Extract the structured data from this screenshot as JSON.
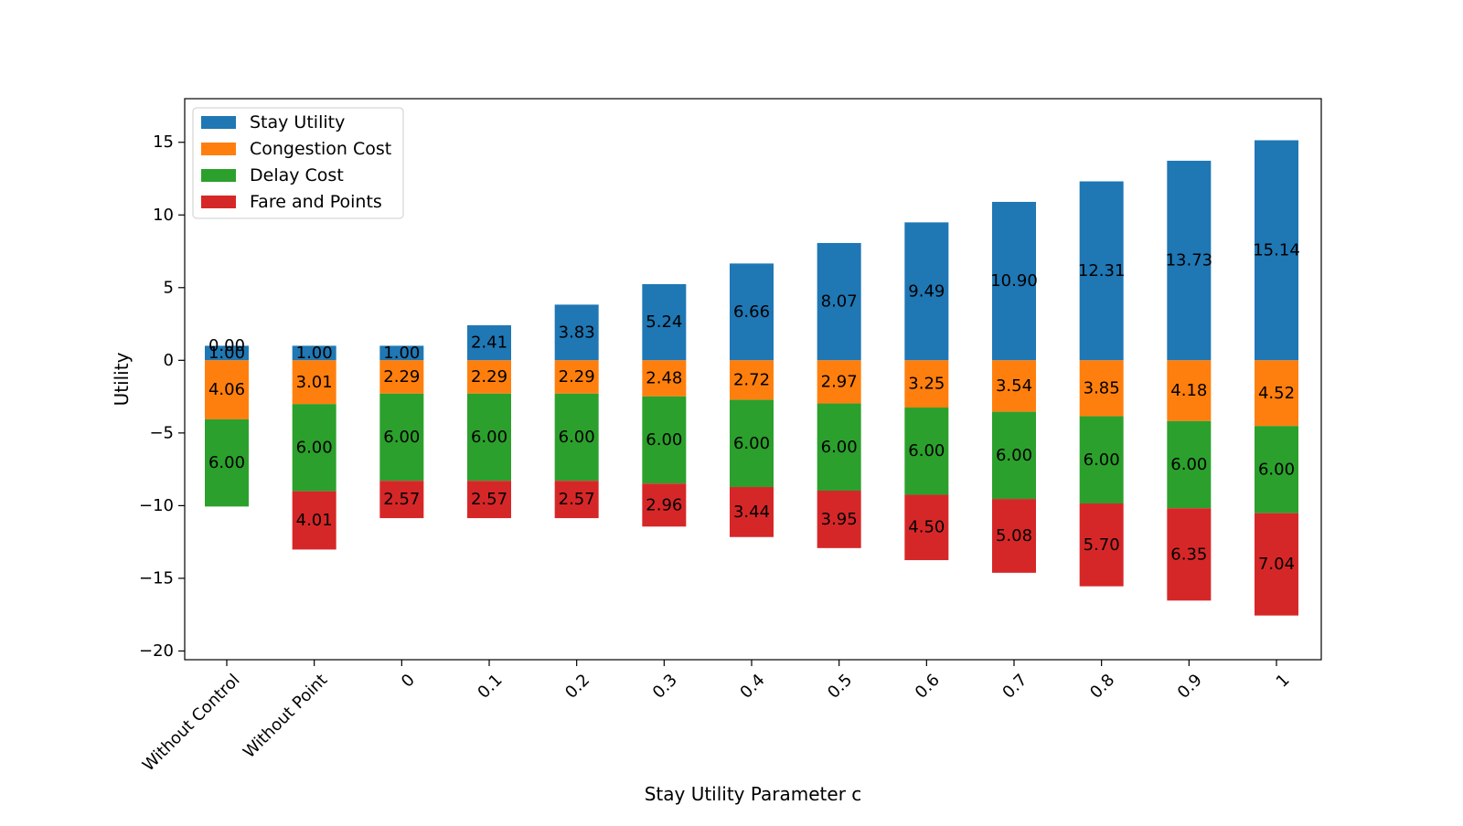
{
  "chart_data": {
    "type": "bar",
    "stacked": true,
    "title": "",
    "xlabel": "Stay Utility Parameter c",
    "ylabel": "Utility",
    "ylim": [
      -20.6,
      18.0
    ],
    "yticks": [
      15,
      10,
      5,
      0,
      -5,
      -10,
      -15,
      -20
    ],
    "ytick_labels": [
      "15",
      "10",
      "5",
      "0",
      "−5",
      "−10",
      "−15",
      "−20"
    ],
    "grid": false,
    "legend_position": "top-left",
    "categories": [
      "Without Control",
      "Without Point",
      "0",
      "0.1",
      "0.2",
      "0.3",
      "0.4",
      "0.5",
      "0.6",
      "0.7",
      "0.8",
      "0.9",
      "1"
    ],
    "series": [
      {
        "name": "Stay Utility",
        "color": "#1f77b4",
        "values": [
          1.0,
          1.0,
          1.0,
          2.41,
          3.83,
          5.24,
          6.66,
          8.07,
          9.49,
          10.9,
          12.31,
          13.73,
          15.14
        ],
        "labels": [
          "1.00",
          "1.00",
          "1.00",
          "2.41",
          "3.83",
          "5.24",
          "6.66",
          "8.07",
          "9.49",
          "10.90",
          "12.31",
          "13.73",
          "15.14"
        ]
      },
      {
        "name": "Congestion Cost",
        "color": "#ff7f0e",
        "values": [
          -4.06,
          -3.01,
          -2.29,
          -2.29,
          -2.29,
          -2.48,
          -2.72,
          -2.97,
          -3.25,
          -3.54,
          -3.85,
          -4.18,
          -4.52
        ],
        "labels": [
          "4.06",
          "3.01",
          "2.29",
          "2.29",
          "2.29",
          "2.48",
          "2.72",
          "2.97",
          "3.25",
          "3.54",
          "3.85",
          "4.18",
          "4.52"
        ]
      },
      {
        "name": "Delay Cost",
        "color": "#2ca02c",
        "values": [
          -6.0,
          -6.0,
          -6.0,
          -6.0,
          -6.0,
          -6.0,
          -6.0,
          -6.0,
          -6.0,
          -6.0,
          -6.0,
          -6.0,
          -6.0
        ],
        "labels": [
          "6.00",
          "6.00",
          "6.00",
          "6.00",
          "6.00",
          "6.00",
          "6.00",
          "6.00",
          "6.00",
          "6.00",
          "6.00",
          "6.00",
          "6.00"
        ]
      },
      {
        "name": "Fare and Points",
        "color": "#d62728",
        "values": [
          0.0,
          -4.01,
          -2.57,
          -2.57,
          -2.57,
          -2.96,
          -3.44,
          -3.95,
          -4.5,
          -5.08,
          -5.7,
          -6.35,
          -7.04
        ],
        "labels": [
          "0.00",
          "4.01",
          "2.57",
          "2.57",
          "2.57",
          "2.96",
          "3.44",
          "3.95",
          "4.50",
          "5.08",
          "5.70",
          "6.35",
          "7.04"
        ]
      }
    ]
  }
}
